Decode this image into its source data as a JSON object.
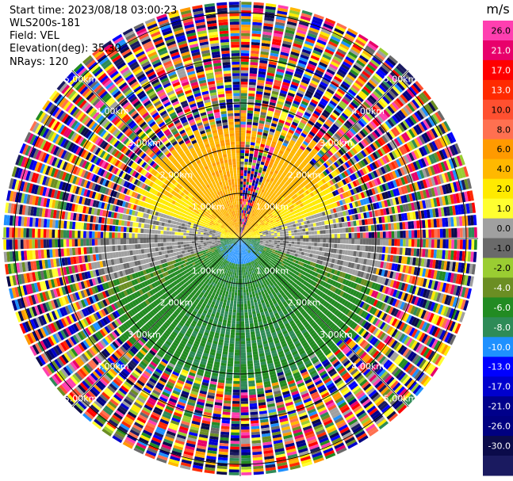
{
  "header": {
    "start_time": "Start time: 2023/08/18 03:00:23",
    "site": "WLS200s-181",
    "field": "Field: VEL",
    "elevation": "Elevation(deg): 35.30",
    "nrays": "NRays: 120"
  },
  "chart_data": {
    "type": "ppi-polar",
    "field": "VEL",
    "units": "m/s",
    "nrays": 120,
    "elevation_deg": 35.3,
    "range_max_km": 5.0,
    "range_rings_km": [
      1.0,
      2.0,
      3.0,
      4.0,
      5.0
    ],
    "ring_labels": [
      "1.00km",
      "2.00km",
      "3.00km",
      "4.00km",
      "5.00km"
    ],
    "colorbar": {
      "unit_label": "m/s",
      "ticks": [
        "26.0",
        "21.0",
        "17.0",
        "13.0",
        "10.0",
        "8.0",
        "6.0",
        "4.0",
        "2.0",
        "1.0",
        "0.0",
        "-1.0",
        "-2.0",
        "-4.0",
        "-6.0",
        "-8.0",
        "-10.0",
        "-13.0",
        "-17.0",
        "-21.0",
        "-26.0",
        "-30.0"
      ],
      "colors": [
        "#ff3fb0",
        "#e8006b",
        "#ff0000",
        "#ff2a00",
        "#ff5030",
        "#ff7050",
        "#ff9a00",
        "#ffb800",
        "#ffea00",
        "#ffff30",
        "#a0a0a0",
        "#6a6a6a",
        "#9acd32",
        "#6b8e23",
        "#228b22",
        "#2e8b57",
        "#1e90ff",
        "#0000ff",
        "#0000cd",
        "#00008b",
        "#000080",
        "#0b0b4a",
        "#1a1a60"
      ],
      "tick_colors": {
        "light": "#000000",
        "dark": "#ffffff"
      }
    },
    "sectors": [
      {
        "from_deg": 0,
        "to_deg": 90,
        "inner_km": 0.0,
        "outer_km": 2.5,
        "description_values_ms": [
          2.0,
          6.0
        ]
      },
      {
        "from_deg": 270,
        "to_deg": 360,
        "inner_km": 0.0,
        "outer_km": 2.5,
        "description_values_ms": [
          2.0,
          6.0
        ]
      },
      {
        "from_deg": 90,
        "to_deg": 270,
        "inner_km": 0.0,
        "outer_km": 3.5,
        "description_values_ms": [
          -2.0,
          -8.0
        ]
      }
    ]
  }
}
